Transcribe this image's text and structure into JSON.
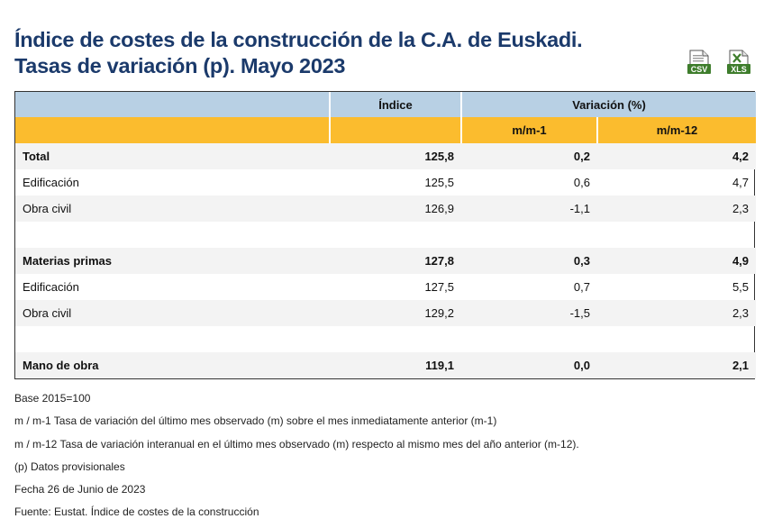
{
  "header": {
    "title_line1": "Índice de costes de la construcción de la C.A. de Euskadi.",
    "title_line2": "Tasas de variación (p). Mayo 2023"
  },
  "downloads": [
    {
      "label": "CSV",
      "icon": "csv-file-icon",
      "color": "#3e7d2c"
    },
    {
      "label": "XLS",
      "icon": "xls-file-icon",
      "color": "#3e7d2c"
    }
  ],
  "table": {
    "header_indice": "Índice",
    "header_variacion": "Variación (%)",
    "header_mm1": "m/m-1",
    "header_mm12": "m/m-12",
    "rows": [
      {
        "label": "Total",
        "indice": "125,8",
        "mm1": "0,2",
        "mm12": "4,2"
      },
      {
        "label": "Edificación",
        "indice": "125,5",
        "mm1": "0,6",
        "mm12": "4,7"
      },
      {
        "label": "Obra civil",
        "indice": "126,9",
        "mm1": "-1,1",
        "mm12": "2,3"
      },
      {
        "label": "Materias primas",
        "indice": "127,8",
        "mm1": "0,3",
        "mm12": "4,9"
      },
      {
        "label": "Edificación",
        "indice": "127,5",
        "mm1": "0,7",
        "mm12": "5,5"
      },
      {
        "label": "Obra civil",
        "indice": "129,2",
        "mm1": "-1,5",
        "mm12": "2,3"
      },
      {
        "label": "Mano de obra",
        "indice": "119,1",
        "mm1": "0,0",
        "mm12": "2,1"
      }
    ]
  },
  "notes": {
    "base": "Base 2015=100",
    "mm1": "m / m-1 Tasa de variación del último mes observado (m) sobre el mes inmediatamente anterior (m-1)",
    "mm12": "m / m-12 Tasa de variación interanual en el último mes observado (m) respecto al mismo mes del año anterior (m-12).",
    "provisional": "(p) Datos provisionales",
    "date": "Fecha 26 de Junio de 2023",
    "source": "Fuente: Eustat. Índice de costes de la construcción"
  }
}
